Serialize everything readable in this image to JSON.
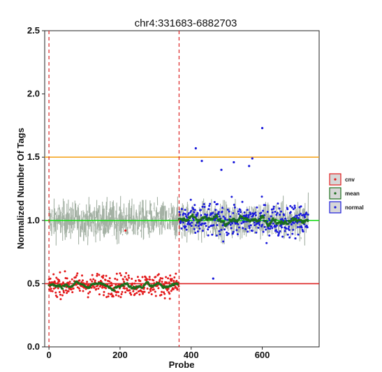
{
  "chart_data": {
    "type": "scatter",
    "title": "chr4:331683-6882703",
    "xlabel": "Probe",
    "ylabel": "Normalized Number Of Tags",
    "xlim": [
      -12,
      760
    ],
    "ylim": [
      0,
      2.5
    ],
    "xticks": [
      0,
      200,
      400,
      600
    ],
    "yticks": [
      0.0,
      0.5,
      1.0,
      1.5,
      2.0,
      2.5
    ],
    "ytick_labels": [
      "0.0",
      "0.5",
      "1.0",
      "1.5",
      "2.0",
      "2.5"
    ],
    "grid": false,
    "legend_position": "right",
    "legend": [
      {
        "label": "cnv",
        "color": "#e31a1c"
      },
      {
        "label": "mean",
        "color": "#1b6e1b"
      },
      {
        "label": "normal",
        "color": "#1a1adb"
      }
    ],
    "reference_lines": {
      "horizontal": [
        {
          "y": 1.5,
          "color": "#f5a623"
        },
        {
          "y": 1.0,
          "color": "#22dd22"
        },
        {
          "y": 0.5,
          "color": "#dd2222"
        }
      ],
      "vertical_dashed": [
        {
          "x": 0,
          "color": "#dd2222"
        },
        {
          "x": 366,
          "color": "#dd2222"
        }
      ]
    },
    "probe_count": 730,
    "segments": [
      {
        "name": "cnv",
        "x_range": [
          0,
          366
        ],
        "level": 0.49,
        "spread": 0.08,
        "band_center": 1.0,
        "color": "#e31a1c"
      },
      {
        "name": "normal",
        "x_range": [
          366,
          730
        ],
        "level": 1.0,
        "spread": 0.12,
        "band_center": 1.0,
        "color": "#1a1adb"
      }
    ],
    "outliers": [
      {
        "x": 413,
        "y": 1.57
      },
      {
        "x": 430,
        "y": 1.47
      },
      {
        "x": 462,
        "y": 0.54
      },
      {
        "x": 485,
        "y": 1.4
      },
      {
        "x": 520,
        "y": 1.46
      },
      {
        "x": 563,
        "y": 1.43
      },
      {
        "x": 572,
        "y": 1.49
      },
      {
        "x": 600,
        "y": 1.73
      },
      {
        "x": 215,
        "y": 0.92
      }
    ],
    "band_color": "#9aa89a"
  }
}
